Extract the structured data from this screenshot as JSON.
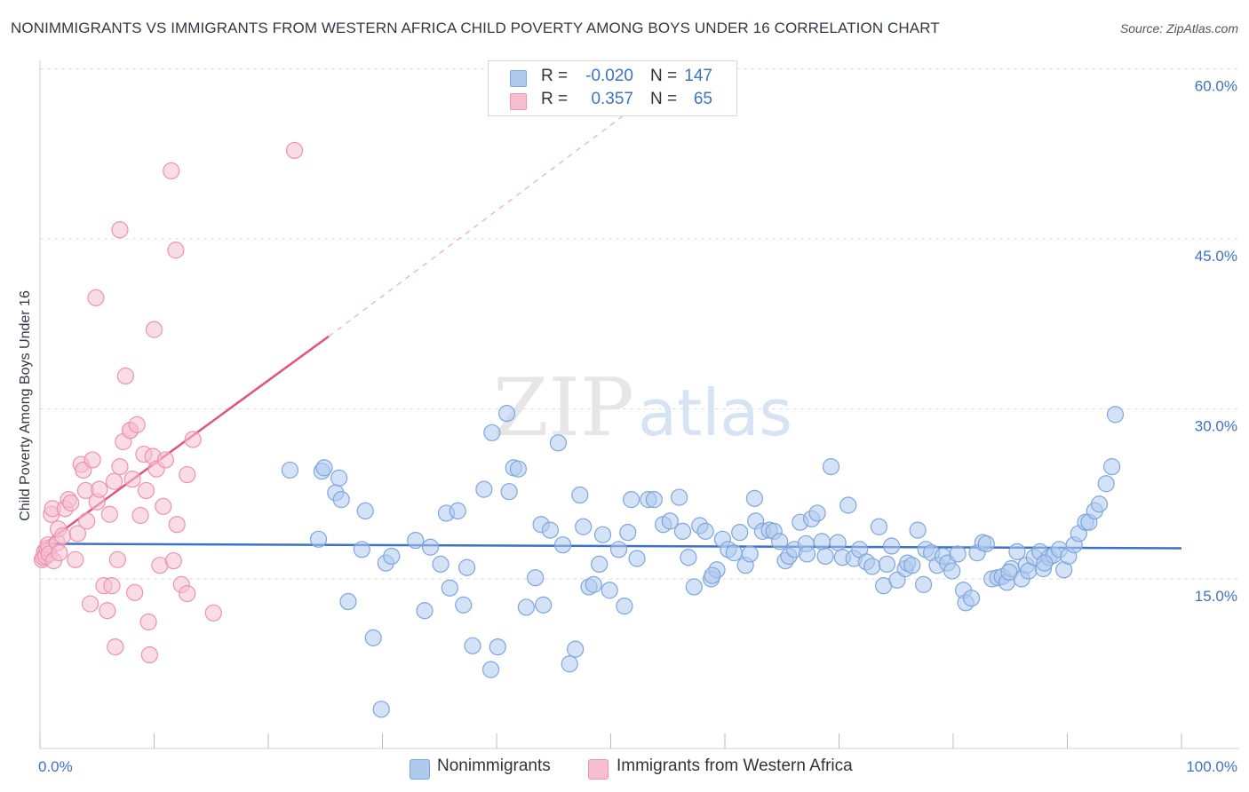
{
  "title": "NONIMMIGRANTS VS IMMIGRANTS FROM WESTERN AFRICA CHILD POVERTY AMONG BOYS UNDER 16 CORRELATION CHART",
  "source": "Source: ZipAtlas.com",
  "watermark": {
    "zip": "ZIP",
    "atlas": "atlas"
  },
  "colors": {
    "blue": "#3d72c6",
    "blue_fill": "#aecbee",
    "blue_stroke": "#7ea6de",
    "pink": "#e2527e",
    "pink_fill": "#f6bfd0",
    "pink_stroke": "#ee92ae",
    "grid": "#dedede"
  },
  "legend_top": [
    {
      "r_label": "R =",
      "r_value": "-0.020",
      "n_label": "N =",
      "n_value": "147",
      "color": "#aecbee",
      "stroke": "#7ea6de"
    },
    {
      "r_label": "R =",
      "r_value": "0.357",
      "n_label": "N =",
      "n_value": "65",
      "color": "#f6bfd0",
      "stroke": "#ee92ae"
    }
  ],
  "legend_bottom": [
    {
      "label": "Nonimmigrants",
      "color": "#aecbee",
      "stroke": "#7ea6de"
    },
    {
      "label": "Immigrants from Western Africa",
      "color": "#f6bfd0",
      "stroke": "#ee92ae"
    }
  ],
  "chart_data": {
    "type": "scatter",
    "ylabel": "Child Poverty Among Boys Under 16",
    "x_tick_labels": [
      "0.0%",
      "100.0%"
    ],
    "y_tick_labels": [
      "15.0%",
      "30.0%",
      "45.0%",
      "60.0%"
    ],
    "xlim": [
      0,
      100
    ],
    "ylim": [
      0,
      60
    ],
    "x_ticks": [
      0,
      10,
      20,
      30,
      40,
      50,
      60,
      70,
      80,
      90,
      100
    ],
    "y_grid": [
      15,
      30,
      45,
      60
    ],
    "grid": "horizontal dashed",
    "legend_position": "top-center",
    "series": [
      {
        "name": "Nonimmigrants",
        "trend": {
          "x": [
            0,
            100
          ],
          "y": [
            18.1,
            17.7
          ],
          "style": "solid"
        },
        "points": [
          [
            21.9,
            24.6
          ],
          [
            24.7,
            24.5
          ],
          [
            24.9,
            24.8
          ],
          [
            25.9,
            22.6
          ],
          [
            26.2,
            23.9
          ],
          [
            26.4,
            22.0
          ],
          [
            24.4,
            18.5
          ],
          [
            27.0,
            13.0
          ],
          [
            28.5,
            21.0
          ],
          [
            28.2,
            17.6
          ],
          [
            29.2,
            9.8
          ],
          [
            30.3,
            16.4
          ],
          [
            30.8,
            17.0
          ],
          [
            29.9,
            3.5
          ],
          [
            32.9,
            18.4
          ],
          [
            33.7,
            12.2
          ],
          [
            34.2,
            17.8
          ],
          [
            35.1,
            16.3
          ],
          [
            35.9,
            14.2
          ],
          [
            35.6,
            20.8
          ],
          [
            36.6,
            21.0
          ],
          [
            37.4,
            16.0
          ],
          [
            37.1,
            12.7
          ],
          [
            37.9,
            9.1
          ],
          [
            38.9,
            22.9
          ],
          [
            39.5,
            7.0
          ],
          [
            39.6,
            27.9
          ],
          [
            40.1,
            9.0
          ],
          [
            40.9,
            29.6
          ],
          [
            41.1,
            22.7
          ],
          [
            41.5,
            24.8
          ],
          [
            41.9,
            24.7
          ],
          [
            42.6,
            12.5
          ],
          [
            43.4,
            15.1
          ],
          [
            43.9,
            19.8
          ],
          [
            44.1,
            12.7
          ],
          [
            44.7,
            19.3
          ],
          [
            45.4,
            27.0
          ],
          [
            45.8,
            18.0
          ],
          [
            46.4,
            7.5
          ],
          [
            46.9,
            8.8
          ],
          [
            47.3,
            22.4
          ],
          [
            47.6,
            19.6
          ],
          [
            48.1,
            14.3
          ],
          [
            48.5,
            14.5
          ],
          [
            49.0,
            16.3
          ],
          [
            49.3,
            18.9
          ],
          [
            49.9,
            14.0
          ],
          [
            50.7,
            17.6
          ],
          [
            51.2,
            12.6
          ],
          [
            51.5,
            19.1
          ],
          [
            51.8,
            22.0
          ],
          [
            52.3,
            16.8
          ],
          [
            53.3,
            22.0
          ],
          [
            53.8,
            22.0
          ],
          [
            54.6,
            19.8
          ],
          [
            55.2,
            20.1
          ],
          [
            56.0,
            22.2
          ],
          [
            56.3,
            19.2
          ],
          [
            56.8,
            16.9
          ],
          [
            57.3,
            14.3
          ],
          [
            57.8,
            19.7
          ],
          [
            58.3,
            19.2
          ],
          [
            58.8,
            15.0
          ],
          [
            59.3,
            15.8
          ],
          [
            59.8,
            18.5
          ],
          [
            60.3,
            17.6
          ],
          [
            60.8,
            17.3
          ],
          [
            61.3,
            19.1
          ],
          [
            61.8,
            16.2
          ],
          [
            62.2,
            17.2
          ],
          [
            62.6,
            22.1
          ],
          [
            62.7,
            20.1
          ],
          [
            63.3,
            19.2
          ],
          [
            63.9,
            19.3
          ],
          [
            64.3,
            19.2
          ],
          [
            64.8,
            18.3
          ],
          [
            65.3,
            16.6
          ],
          [
            65.6,
            17.0
          ],
          [
            66.1,
            17.6
          ],
          [
            66.6,
            20.0
          ],
          [
            67.1,
            18.1
          ],
          [
            67.6,
            20.3
          ],
          [
            68.1,
            20.8
          ],
          [
            68.5,
            18.3
          ],
          [
            68.8,
            17.0
          ],
          [
            69.3,
            24.9
          ],
          [
            69.9,
            18.2
          ],
          [
            70.3,
            16.9
          ],
          [
            70.8,
            21.5
          ],
          [
            71.3,
            16.8
          ],
          [
            71.8,
            17.6
          ],
          [
            72.4,
            16.5
          ],
          [
            72.9,
            16.1
          ],
          [
            73.5,
            19.6
          ],
          [
            73.9,
            14.4
          ],
          [
            74.6,
            17.9
          ],
          [
            75.1,
            14.9
          ],
          [
            75.8,
            15.9
          ],
          [
            76.0,
            16.4
          ],
          [
            76.4,
            16.2
          ],
          [
            76.9,
            19.3
          ],
          [
            77.4,
            14.5
          ],
          [
            77.6,
            17.6
          ],
          [
            78.1,
            17.3
          ],
          [
            78.6,
            16.2
          ],
          [
            79.1,
            17.0
          ],
          [
            79.5,
            16.4
          ],
          [
            79.9,
            15.7
          ],
          [
            80.4,
            17.2
          ],
          [
            80.9,
            14.0
          ],
          [
            81.1,
            12.9
          ],
          [
            81.6,
            13.3
          ],
          [
            82.1,
            17.3
          ],
          [
            82.6,
            18.2
          ],
          [
            82.9,
            18.1
          ],
          [
            83.4,
            15.0
          ],
          [
            83.9,
            15.1
          ],
          [
            84.3,
            15.2
          ],
          [
            84.7,
            14.7
          ],
          [
            85.1,
            15.9
          ],
          [
            85.6,
            17.4
          ],
          [
            86.0,
            15.0
          ],
          [
            86.4,
            16.2
          ],
          [
            86.6,
            15.7
          ],
          [
            87.1,
            16.9
          ],
          [
            87.6,
            17.4
          ],
          [
            87.9,
            15.9
          ],
          [
            88.4,
            16.9
          ],
          [
            88.8,
            17.1
          ],
          [
            89.3,
            17.6
          ],
          [
            89.7,
            15.8
          ],
          [
            90.1,
            17.0
          ],
          [
            90.6,
            18.0
          ],
          [
            91.0,
            19.0
          ],
          [
            91.6,
            20.0
          ],
          [
            91.9,
            20.0
          ],
          [
            92.4,
            21.0
          ],
          [
            92.8,
            21.6
          ],
          [
            93.4,
            23.4
          ],
          [
            93.9,
            24.9
          ],
          [
            94.2,
            29.5
          ],
          [
            88.0,
            16.4
          ],
          [
            84.9,
            15.6
          ],
          [
            74.2,
            16.3
          ],
          [
            67.2,
            17.2
          ],
          [
            58.9,
            15.3
          ]
        ]
      },
      {
        "name": "Immigrants from Western Africa",
        "trend": {
          "x": [
            0,
            25.3
          ],
          "y": [
            17.8,
            36.4
          ],
          "dashed_to": [
            52.2,
            56.7
          ],
          "style": "solid then dashed"
        },
        "points": [
          [
            0.2,
            16.7
          ],
          [
            0.3,
            16.9
          ],
          [
            0.4,
            17.4
          ],
          [
            0.5,
            17.0
          ],
          [
            0.6,
            17.7
          ],
          [
            0.7,
            18.0
          ],
          [
            0.8,
            17.2
          ],
          [
            1.0,
            20.7
          ],
          [
            1.1,
            21.2
          ],
          [
            1.2,
            16.6
          ],
          [
            1.5,
            18.2
          ],
          [
            1.6,
            19.4
          ],
          [
            1.7,
            17.3
          ],
          [
            2.0,
            18.8
          ],
          [
            2.2,
            21.2
          ],
          [
            2.5,
            22.0
          ],
          [
            2.7,
            21.7
          ],
          [
            3.1,
            16.7
          ],
          [
            3.3,
            19.0
          ],
          [
            3.6,
            25.1
          ],
          [
            3.8,
            24.6
          ],
          [
            4.0,
            22.8
          ],
          [
            4.1,
            20.1
          ],
          [
            4.4,
            12.8
          ],
          [
            4.6,
            25.5
          ],
          [
            5.0,
            21.8
          ],
          [
            5.2,
            22.9
          ],
          [
            5.6,
            14.4
          ],
          [
            5.9,
            12.2
          ],
          [
            6.1,
            20.7
          ],
          [
            6.3,
            14.4
          ],
          [
            6.5,
            23.6
          ],
          [
            6.6,
            9.0
          ],
          [
            6.8,
            16.7
          ],
          [
            7.0,
            24.9
          ],
          [
            7.3,
            27.1
          ],
          [
            7.9,
            28.1
          ],
          [
            7.5,
            32.9
          ],
          [
            7.9,
            28.1
          ],
          [
            8.1,
            23.8
          ],
          [
            8.3,
            13.8
          ],
          [
            8.5,
            28.6
          ],
          [
            8.8,
            20.6
          ],
          [
            9.1,
            26.0
          ],
          [
            9.3,
            22.8
          ],
          [
            9.5,
            11.2
          ],
          [
            9.6,
            8.3
          ],
          [
            9.9,
            25.8
          ],
          [
            10.0,
            37.0
          ],
          [
            10.2,
            24.7
          ],
          [
            10.5,
            16.2
          ],
          [
            10.8,
            21.4
          ],
          [
            11.0,
            25.5
          ],
          [
            11.5,
            51.0
          ],
          [
            11.7,
            16.6
          ],
          [
            11.9,
            44.0
          ],
          [
            12.0,
            19.8
          ],
          [
            12.4,
            14.5
          ],
          [
            12.9,
            13.7
          ],
          [
            12.9,
            24.2
          ],
          [
            13.4,
            27.3
          ],
          [
            15.2,
            12.0
          ],
          [
            7.0,
            45.8
          ],
          [
            4.9,
            39.8
          ],
          [
            22.3,
            52.8
          ]
        ]
      }
    ]
  }
}
